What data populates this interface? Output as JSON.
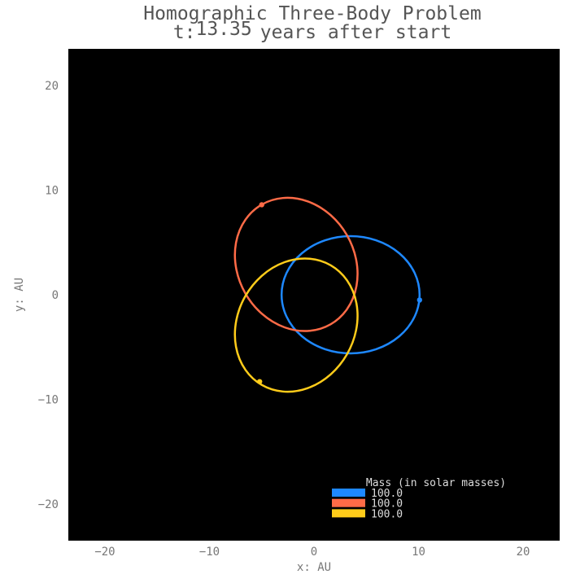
{
  "chart_data": {
    "type": "line",
    "title_line1": "Homographic Three-Body Problem",
    "title_time_prefix": "t:",
    "title_time_value": "13.35",
    "title_time_suffix": "years after start",
    "xlabel": "x: AU",
    "ylabel": "y: AU",
    "xlim": [
      -23.5,
      23.5
    ],
    "ylim": [
      -23.5,
      23.5
    ],
    "x_ticks": [
      -20,
      -10,
      0,
      10,
      20
    ],
    "y_ticks": [
      -20,
      -10,
      0,
      10,
      20
    ],
    "background": "#000000",
    "grid": false,
    "legend": {
      "title": "Mass (in solar masses)",
      "placement": "bottom-right"
    },
    "series": [
      {
        "name": "100.0",
        "color": "#1e88ff",
        "center": [
          3.5,
          0
        ],
        "rx": 6.6,
        "ry": 5.6,
        "rotation_deg": 0,
        "current": [
          10.1,
          -0.5
        ]
      },
      {
        "name": "100.0",
        "color": "#ff6b47",
        "center": [
          -1.7,
          2.9
        ],
        "rx": 6.6,
        "ry": 5.6,
        "rotation_deg": 120,
        "current": [
          -5.0,
          8.6
        ]
      },
      {
        "name": "100.0",
        "color": "#ffcc1a",
        "center": [
          -1.7,
          -2.9
        ],
        "rx": 6.6,
        "ry": 5.6,
        "rotation_deg": 240,
        "current": [
          -5.2,
          -8.3
        ]
      }
    ]
  }
}
